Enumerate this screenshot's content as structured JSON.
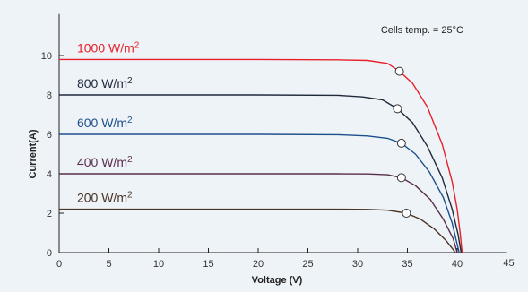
{
  "chart_data": {
    "type": "line",
    "annotation": "Cells temp. = 25°C",
    "xlabel": "Voltage  (V)",
    "ylabel": "Current(A)",
    "xlim": [
      0,
      45
    ],
    "ylim": [
      0,
      12
    ],
    "x_ticks": [
      "0",
      "5",
      "10",
      "15",
      "20",
      "25",
      "30",
      "35",
      "40",
      "45"
    ],
    "y_ticks": [
      "0",
      "2",
      "4",
      "6",
      "8",
      "10"
    ],
    "grid": false,
    "series": [
      {
        "name": "1000 W/m",
        "superscript": "2",
        "color": "#e8202a",
        "points": [
          [
            0,
            9.8
          ],
          [
            10,
            9.8
          ],
          [
            20,
            9.8
          ],
          [
            28,
            9.78
          ],
          [
            31,
            9.75
          ],
          [
            33,
            9.6
          ],
          [
            34.2,
            9.2
          ],
          [
            35.5,
            8.6
          ],
          [
            37,
            7.4
          ],
          [
            38.5,
            5.5
          ],
          [
            39.5,
            3.6
          ],
          [
            40,
            2.2
          ],
          [
            40.3,
            1.0
          ],
          [
            40.5,
            0
          ]
        ],
        "mpp": [
          34.2,
          9.2
        ]
      },
      {
        "name": "800 W/m",
        "superscript": "2",
        "color": "#1f2a3a",
        "points": [
          [
            0,
            8.0
          ],
          [
            10,
            8.0
          ],
          [
            20,
            8.0
          ],
          [
            28,
            7.98
          ],
          [
            30.5,
            7.9
          ],
          [
            32.5,
            7.75
          ],
          [
            34,
            7.3
          ],
          [
            35.5,
            6.6
          ],
          [
            37,
            5.4
          ],
          [
            38.5,
            3.8
          ],
          [
            39.5,
            2.2
          ],
          [
            40.1,
            0.9
          ],
          [
            40.4,
            0
          ]
        ],
        "mpp": [
          34.0,
          7.3
        ]
      },
      {
        "name": "600 W/m",
        "superscript": "2",
        "color": "#1d4f8a",
        "points": [
          [
            0,
            6.0
          ],
          [
            10,
            6.0
          ],
          [
            20,
            6.0
          ],
          [
            28,
            5.98
          ],
          [
            31,
            5.92
          ],
          [
            33,
            5.8
          ],
          [
            34.4,
            5.55
          ],
          [
            35.8,
            5.0
          ],
          [
            37.2,
            4.1
          ],
          [
            38.6,
            2.8
          ],
          [
            39.5,
            1.5
          ],
          [
            40.2,
            0
          ]
        ],
        "mpp": [
          34.4,
          5.55
        ]
      },
      {
        "name": "400 W/m",
        "superscript": "2",
        "color": "#5a2d4a",
        "points": [
          [
            0,
            4.0
          ],
          [
            10,
            4.0
          ],
          [
            20,
            4.0
          ],
          [
            28,
            4.0
          ],
          [
            31,
            3.99
          ],
          [
            33,
            3.95
          ],
          [
            34.4,
            3.8
          ],
          [
            35.8,
            3.4
          ],
          [
            37.3,
            2.7
          ],
          [
            38.6,
            1.7
          ],
          [
            39.6,
            0.7
          ],
          [
            40.0,
            0
          ]
        ],
        "mpp": [
          34.4,
          3.8
        ]
      },
      {
        "name": "200 W/m",
        "superscript": "2",
        "color": "#4a3426",
        "points": [
          [
            0,
            2.2
          ],
          [
            10,
            2.2
          ],
          [
            20,
            2.2
          ],
          [
            28,
            2.2
          ],
          [
            31,
            2.19
          ],
          [
            33,
            2.15
          ],
          [
            34.9,
            2.0
          ],
          [
            36.3,
            1.7
          ],
          [
            37.7,
            1.2
          ],
          [
            38.9,
            0.6
          ],
          [
            39.6,
            0.15
          ],
          [
            39.8,
            0
          ]
        ],
        "mpp": [
          34.9,
          2.0
        ]
      }
    ]
  }
}
